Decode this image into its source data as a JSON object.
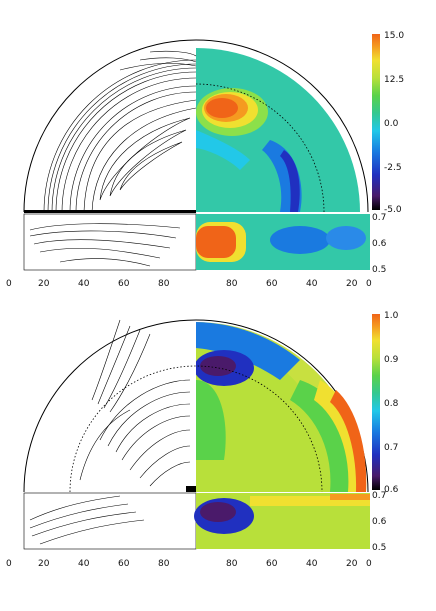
{
  "panels": [
    {
      "id": "top",
      "colorbar": {
        "ticks": [
          "15.0",
          "12.5",
          "0.0",
          "-2.5",
          "-5.0"
        ]
      },
      "side_ticks": [
        "0.7",
        "0.6",
        "0.5"
      ],
      "x_ticks_left": [
        "0",
        "20",
        "40",
        "60",
        "80"
      ],
      "x_ticks_right": [
        "80",
        "60",
        "40",
        "20",
        "0"
      ]
    },
    {
      "id": "bottom",
      "colorbar": {
        "ticks": [
          "1.0",
          "0.9",
          "0.8",
          "0.7",
          "0.6"
        ]
      },
      "side_ticks": [
        "0.7",
        "0.6",
        "0.5"
      ],
      "x_ticks_left": [
        "0",
        "20",
        "40",
        "60",
        "80"
      ],
      "x_ticks_right": [
        "80",
        "60",
        "40",
        "20",
        "0"
      ]
    }
  ],
  "colors": {
    "scale": [
      "#000000",
      "#4a1a6a",
      "#2030c0",
      "#1a7ae0",
      "#22c8e8",
      "#33c890",
      "#5ad24a",
      "#b8e03a",
      "#f0e030",
      "#f59a20",
      "#f06418"
    ],
    "line": "#000000"
  }
}
